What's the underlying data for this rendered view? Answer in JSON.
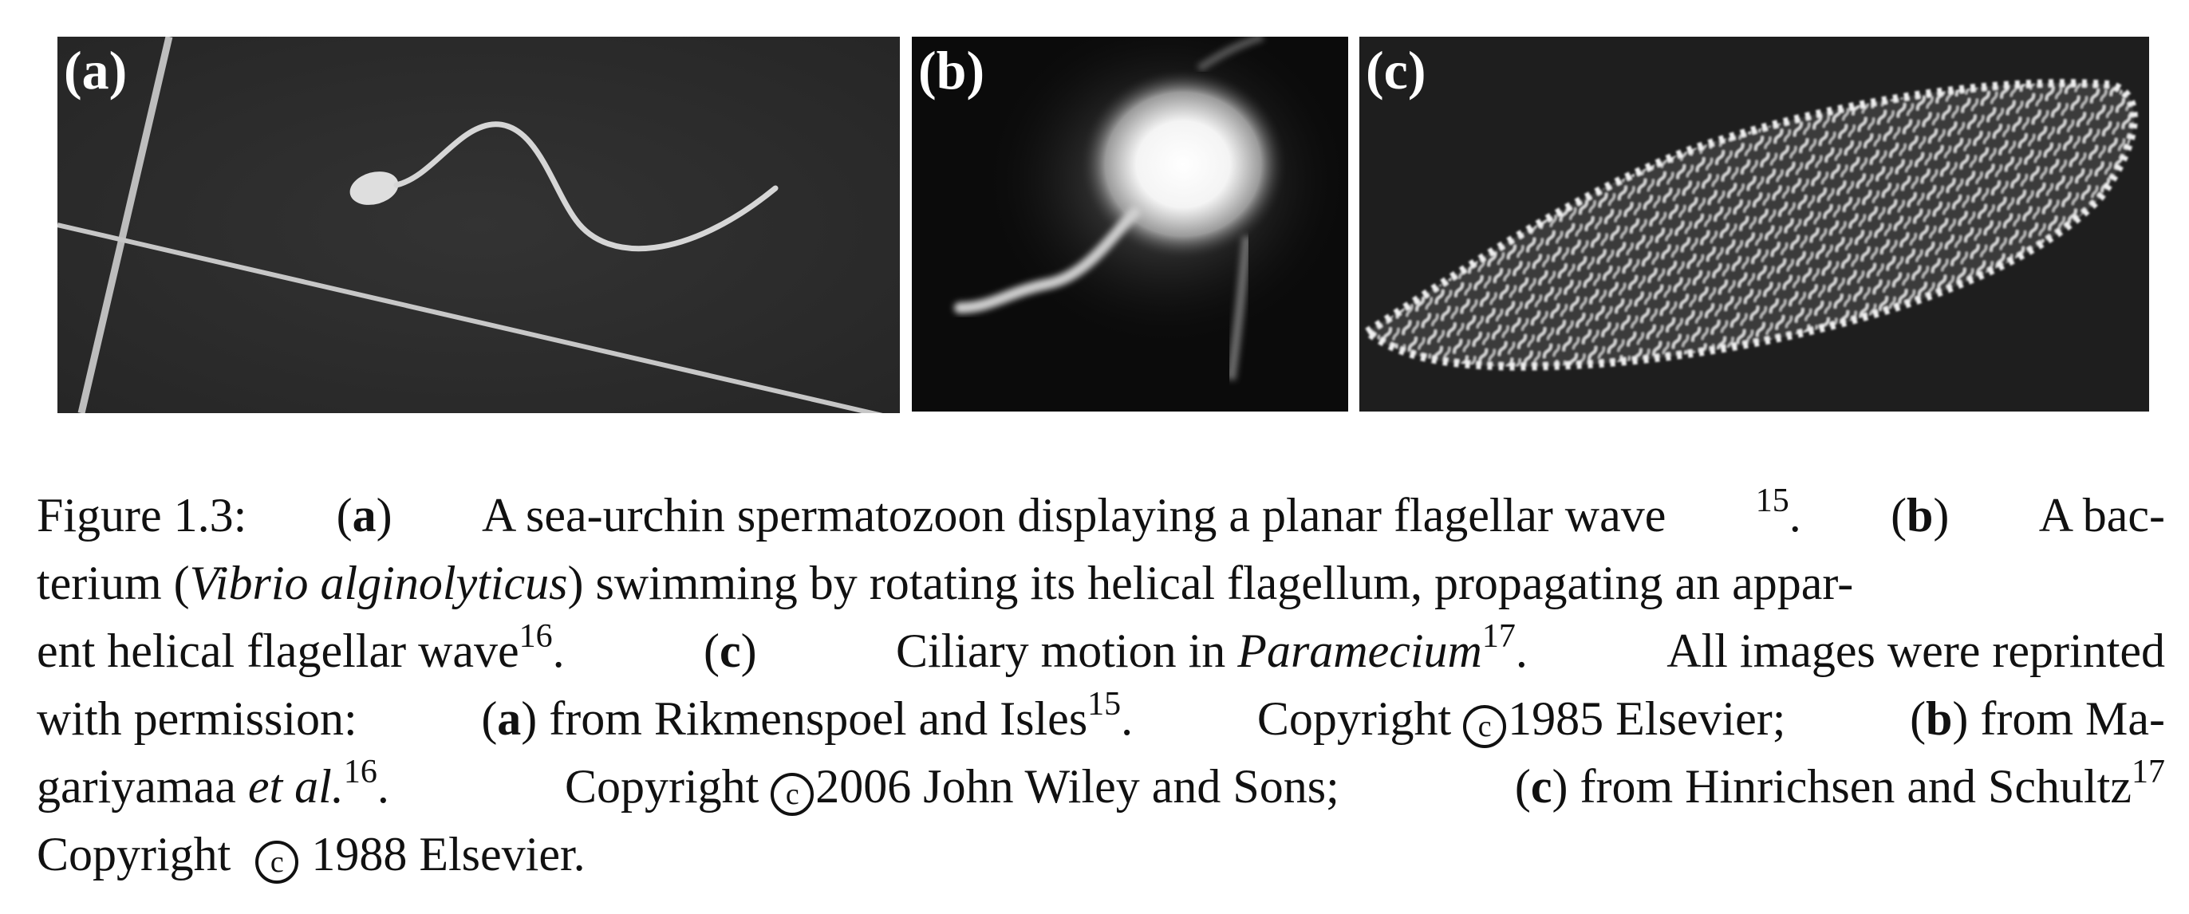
{
  "panels": [
    {
      "label": "(a)",
      "subject": "sea-urchin spermatozoon",
      "colors": {
        "background": "#2b2b2b",
        "foreground": "#d8d8d8"
      }
    },
    {
      "label": "(b)",
      "subject": "bacterium Vibrio alginolyticus",
      "colors": {
        "background": "#0b0b0b",
        "foreground": "#f2f2f2"
      }
    },
    {
      "label": "(c)",
      "subject": "Paramecium cilia",
      "colors": {
        "background": "#1e1e1e",
        "foreground": "#f0f0f0"
      }
    }
  ],
  "caption": {
    "figure_label": "Figure 1.3:",
    "a_open": "(",
    "a_letter": "a",
    "a_close": ")",
    "a_text": "A sea-urchin spermatozoon displaying a planar flagellar wave",
    "ref15": "15",
    "period": ".",
    "b_letter": "b",
    "b_text_1": "A bac-",
    "b_text_2": "terium (",
    "b_species": "Vibrio alginolyticus",
    "b_text_3": ") swimming by rotating its helical flagellum, propagating an appar-",
    "b_text_4": "ent helical flagellar wave",
    "ref16": "16",
    "c_letter": "c",
    "c_text_1": "Ciliary motion in",
    "c_species": "Paramecium",
    "ref17": "17",
    "all_images": "All images were reprinted",
    "with_perm": "with permission:",
    "from_rik": "from Rikmenspoel and Isles",
    "copyright_word": "Copyright",
    "copy_symbol": "c",
    "year_1985": "1985 Elsevier;",
    "from_ma": "from Ma-",
    "gariyamaa": "gariyamaa",
    "et_al": "et al.",
    "year_2006": "2006 John Wiley and Sons;",
    "from_hin": "from Hinrichsen and Schultz",
    "year_1988": "1988 Elsevier."
  }
}
